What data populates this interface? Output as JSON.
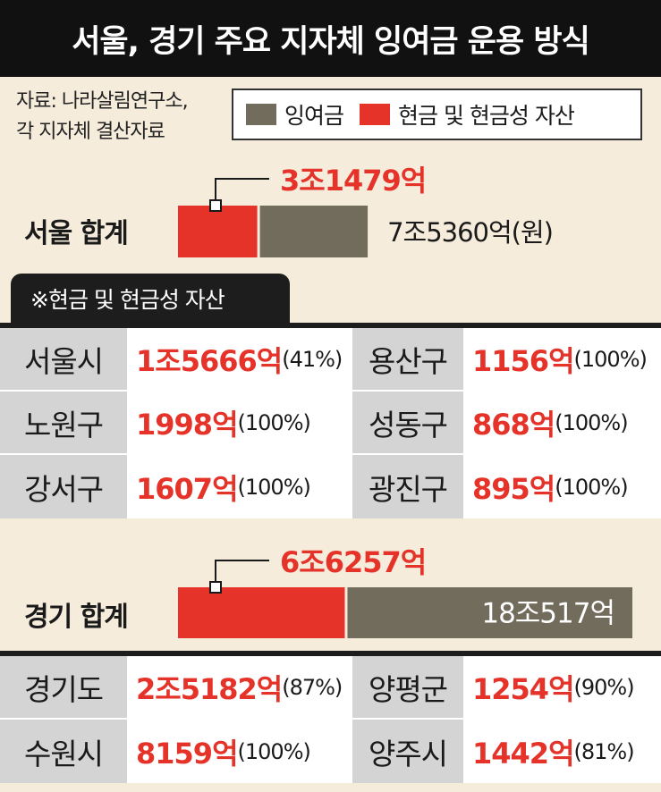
{
  "title": "서울, 경기 주요 지자체 잉여금 운용 방식",
  "source": "자료: 나라살림연구소,\n각 지자체 결산자료",
  "legend": [
    {
      "label": "잉여금",
      "color": "#726c5d"
    },
    {
      "label": "현금 및 현금성 자산",
      "color": "#e5332a"
    }
  ],
  "section_tab": "※현금 및 현금성 자산",
  "colors": {
    "cash": "#e5332a",
    "surplus": "#726c5d",
    "name_bg": "#d4d4d4",
    "tab": "#1d1d1d"
  },
  "chart_data": [
    {
      "type": "bar",
      "label": "서울 합계",
      "cash_value": 31479,
      "cash_label": "3조1479억",
      "surplus_value": 75360,
      "surplus_label": "7조5360억(원)",
      "surplus_label_position": "outside",
      "scale_max": 180517
    },
    {
      "type": "bar",
      "label": "경기 합계",
      "cash_value": 66257,
      "cash_label": "6조6257억",
      "surplus_value": 180517,
      "surplus_label": "18조517억",
      "surplus_label_position": "inside",
      "scale_max": 180517
    }
  ],
  "seoul_table": [
    [
      {
        "name": "서울시",
        "amount": "1조5666억",
        "pct": "(41%)"
      },
      {
        "name": "용산구",
        "amount": "1156억",
        "pct": "(100%)"
      }
    ],
    [
      {
        "name": "노원구",
        "amount": "1998억",
        "pct": "(100%)"
      },
      {
        "name": "성동구",
        "amount": "868억",
        "pct": "(100%)"
      }
    ],
    [
      {
        "name": "강서구",
        "amount": "1607억",
        "pct": "(100%)"
      },
      {
        "name": "광진구",
        "amount": "895억",
        "pct": "(100%)"
      }
    ]
  ],
  "gyeonggi_table": [
    [
      {
        "name": "경기도",
        "amount": "2조5182억",
        "pct": "(87%)"
      },
      {
        "name": "양평군",
        "amount": "1254억",
        "pct": "(90%)"
      }
    ],
    [
      {
        "name": "수원시",
        "amount": "8159억",
        "pct": "(100%)"
      },
      {
        "name": "양주시",
        "amount": "1442억",
        "pct": "(81%)"
      }
    ]
  ]
}
